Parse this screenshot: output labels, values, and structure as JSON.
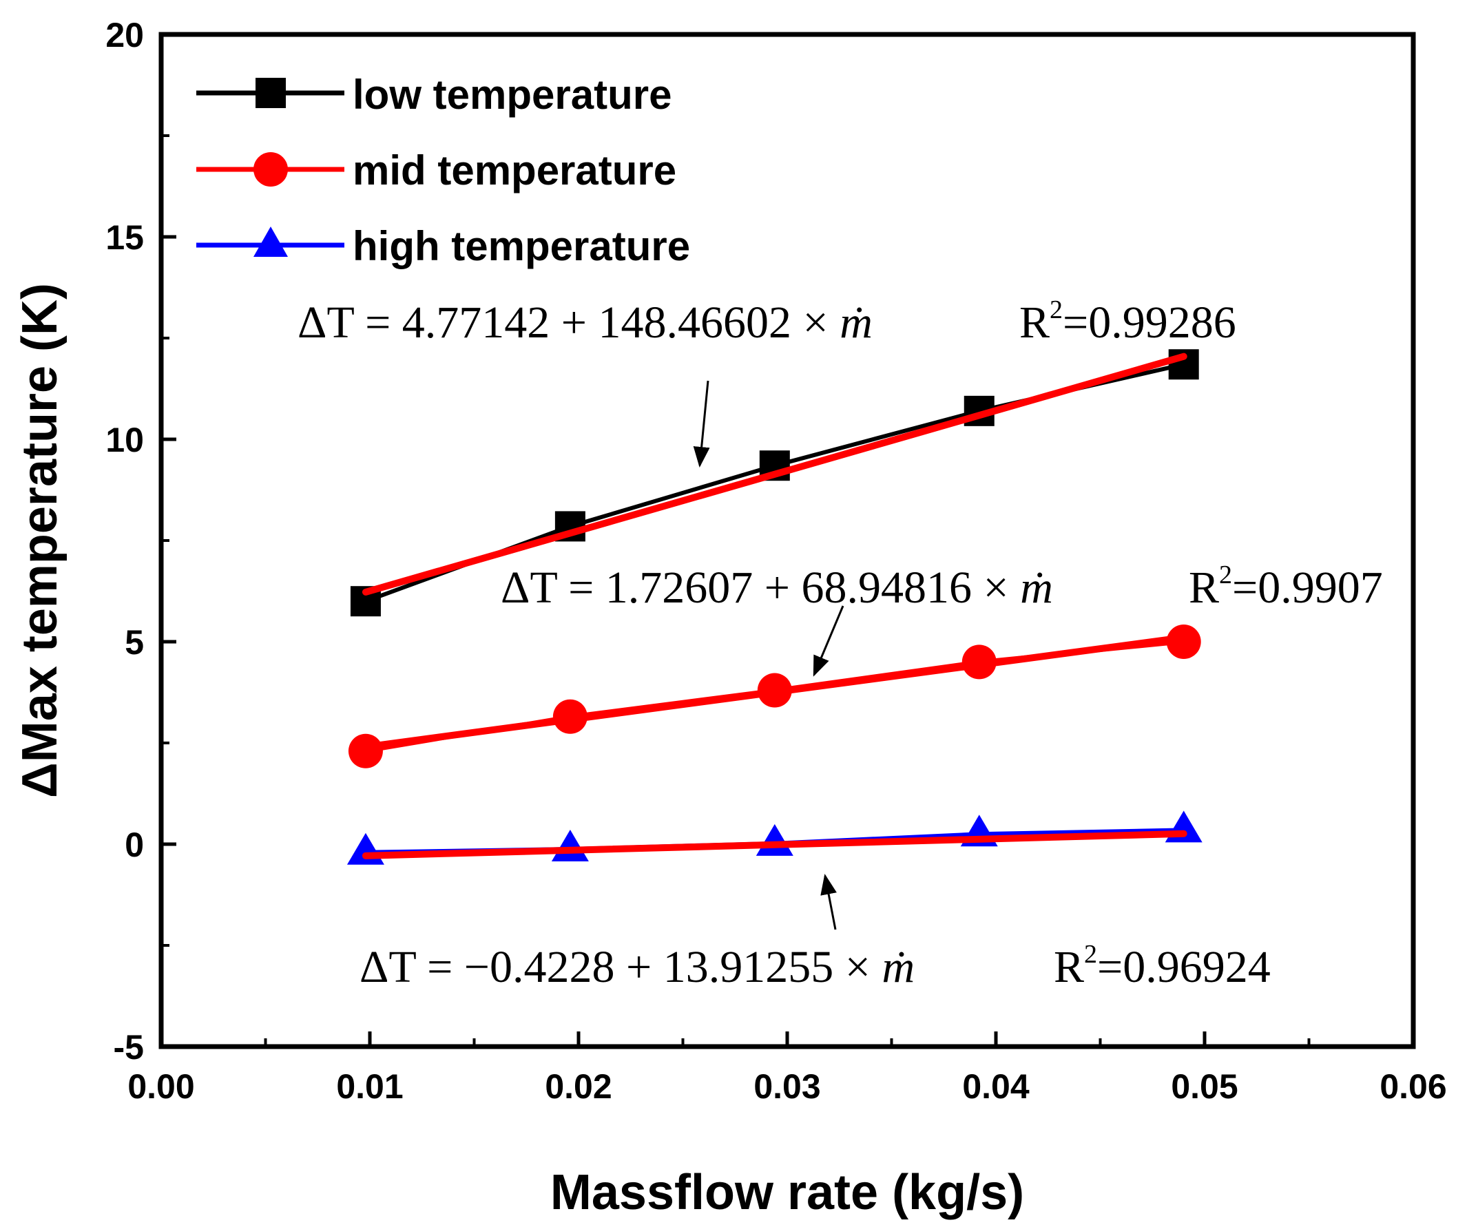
{
  "chart_data": {
    "type": "line",
    "title": "",
    "xlabel": "Massflow rate (kg/s)",
    "ylabel": "ΔMax temperature (K)",
    "xlim": [
      0.0,
      0.06
    ],
    "ylim": [
      -5,
      20
    ],
    "x_ticks": [
      "0.00",
      "0.01",
      "0.02",
      "0.03",
      "0.04",
      "0.05",
      "0.06"
    ],
    "y_ticks": [
      "-5",
      "0",
      "5",
      "10",
      "15",
      "20"
    ],
    "x_tick_values": [
      0.0,
      0.01,
      0.02,
      0.03,
      0.04,
      0.05,
      0.06
    ],
    "y_tick_values": [
      -5,
      0,
      5,
      10,
      15,
      20
    ],
    "x": [
      0.0098,
      0.0196,
      0.0294,
      0.0392,
      0.049
    ],
    "legend_position": "top-left",
    "series": [
      {
        "name": "low temperature",
        "color": "#000000",
        "marker": "square",
        "values": [
          6.0,
          7.85,
          9.35,
          10.7,
          11.85
        ],
        "fit": {
          "intercept": 4.77142,
          "slope": 148.46602,
          "color": "#ff0000"
        },
        "equation": {
          "lhs": "ΔT = 4.77142 + 148.46602 ×",
          "var": "ṁ",
          "r2_label": "R",
          "r2_sup": "2",
          "r2_value": "=0.99286"
        }
      },
      {
        "name": "mid temperature",
        "color": "#ff0000",
        "marker": "circle",
        "values": [
          2.3,
          3.15,
          3.8,
          4.5,
          5.0
        ],
        "fit": {
          "intercept": 1.72607,
          "slope": 68.94816,
          "color": "#ff0000"
        },
        "equation": {
          "lhs": "ΔT = 1.72607 + 68.94816 ×",
          "var": "ṁ",
          "r2_label": "R",
          "r2_sup": "2",
          "r2_value": "=0.9907"
        }
      },
      {
        "name": "high temperature",
        "color": "#0000ff",
        "marker": "triangle",
        "values": [
          -0.2,
          -0.12,
          0.02,
          0.25,
          0.35
        ],
        "fit": {
          "intercept": -0.4228,
          "slope": 13.91255,
          "color": "#ff0000"
        },
        "equation": {
          "lhs": "ΔT = −0.4228 + 13.91255 ×",
          "var": "ṁ",
          "r2_label": "R",
          "r2_sup": "2",
          "r2_value": "=0.96924"
        }
      }
    ]
  }
}
